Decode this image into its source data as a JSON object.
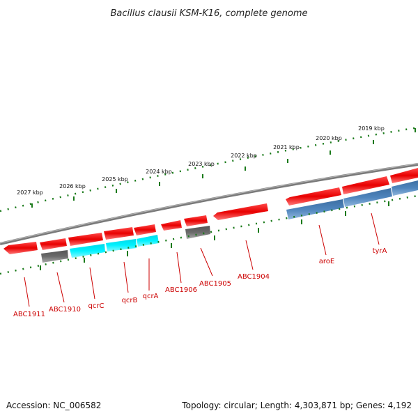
{
  "title": "Bacillus clausii KSM-K16, complete genome",
  "footer": {
    "accession": "Accession: NC_006582",
    "topology": "Topology: circular; Length: 4,303,871 bp; Genes: 4,192"
  },
  "colors": {
    "label": "#cc0000",
    "backbone": "#7a7a7a",
    "ticks": "#1a7a1a",
    "cds_forward": "#ee1111",
    "cds_reverse_a": "#00e5ee",
    "cds_reverse_b": "#4a7fb5",
    "pseudo": "#606060"
  },
  "scale_labels": [
    "2027 kbp",
    "2026 kbp",
    "2025 kbp",
    "2024 kbp",
    "2023 kbp",
    "2022 kbp",
    "2021 kbp",
    "2020 kbp",
    "2019 kbp"
  ],
  "gene_labels": [
    "ABC1911",
    "ABC1910",
    "qcrC",
    "qcrB",
    "qcrA",
    "ABC1906",
    "ABC1905",
    "ABC1904",
    "aroE",
    "tyrA"
  ]
}
